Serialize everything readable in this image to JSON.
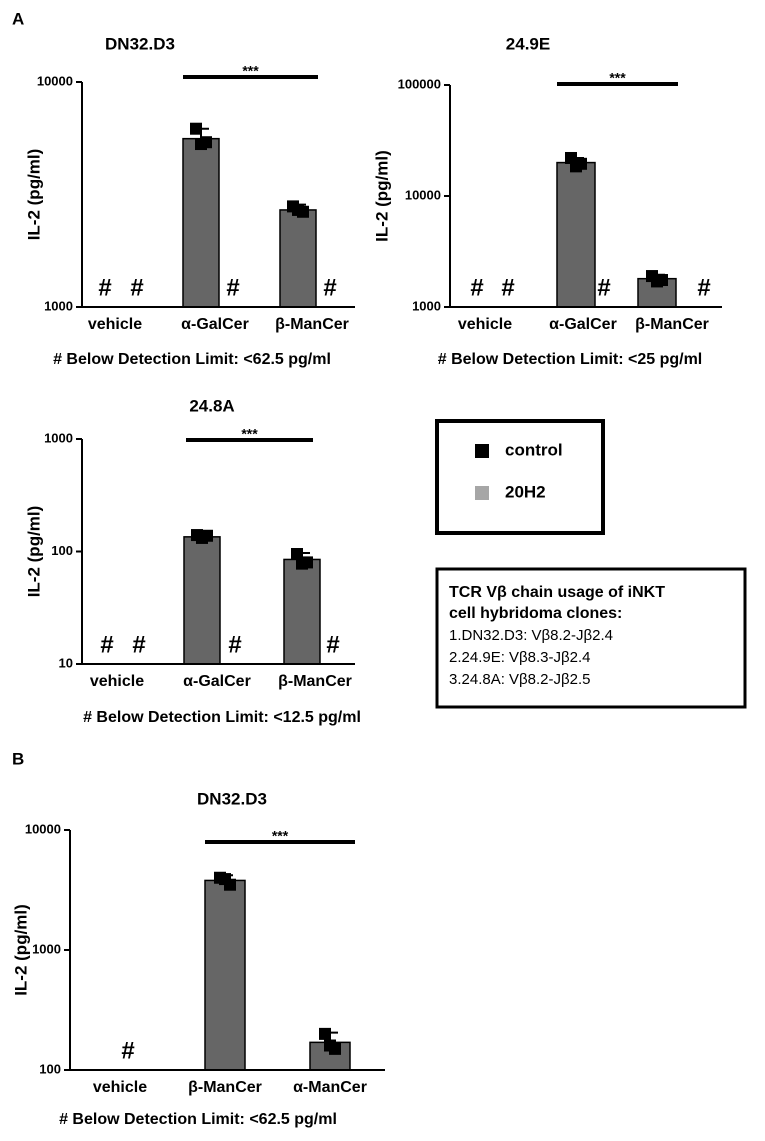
{
  "chart_data": [
    {
      "type": "bar",
      "panel": "A",
      "title": "DN32.D3",
      "ylabel": "IL-2 (pg/ml)",
      "yscale": "log",
      "ylim": [
        1000,
        10000
      ],
      "yticks": [
        1000,
        10000
      ],
      "categories": [
        "vehicle",
        "α-GalCer",
        "β-ManCer"
      ],
      "significance": "***",
      "note": "# Below Detection Limit: <62.5 pg/ml",
      "series": [
        {
          "name": "control",
          "color": "#000000",
          "values": [
            null,
            5600,
            2700
          ],
          "errors": [
            null,
            600,
            150
          ],
          "points": [
            null,
            [
              6200,
              5400,
              5300
            ],
            [
              2800,
              2650,
              2700
            ]
          ],
          "value_labels": [
            "#",
            null,
            null
          ]
        },
        {
          "name": "20H2",
          "color": "#a6a6a6",
          "values": [
            null,
            null,
            null
          ],
          "value_labels": [
            "#",
            "#",
            "#"
          ]
        }
      ]
    },
    {
      "type": "bar",
      "title": "24.9E",
      "ylabel": "IL-2 (pg/ml)",
      "yscale": "log",
      "ylim": [
        1000,
        100000
      ],
      "yticks": [
        1000,
        10000,
        100000
      ],
      "categories": [
        "vehicle",
        "α-GalCer",
        "β-ManCer"
      ],
      "significance": "***",
      "note": "# Below Detection Limit: <25 pg/ml",
      "series": [
        {
          "name": "control",
          "color": "#000000",
          "values": [
            null,
            20000,
            1800
          ],
          "errors": [
            null,
            2000,
            150
          ],
          "points": [
            null,
            [
              22000,
              19500,
              18500
            ],
            [
              1900,
              1750,
              1700
            ]
          ],
          "value_labels": [
            "#",
            null,
            null
          ]
        },
        {
          "name": "20H2",
          "color": "#a6a6a6",
          "values": [
            null,
            null,
            null
          ],
          "value_labels": [
            "#",
            "#",
            "#"
          ]
        }
      ]
    },
    {
      "type": "bar",
      "title": "24.8A",
      "ylabel": "IL-2 (pg/ml)",
      "yscale": "log",
      "ylim": [
        10,
        1000
      ],
      "yticks": [
        10,
        100,
        1000
      ],
      "categories": [
        "vehicle",
        "α-GalCer",
        "β-ManCer"
      ],
      "significance": "***",
      "note": "# Below Detection Limit: <12.5 pg/ml",
      "series": [
        {
          "name": "control",
          "color": "#000000",
          "values": [
            null,
            135,
            85
          ],
          "errors": [
            null,
            6,
            12
          ],
          "points": [
            null,
            [
              140,
              138,
              132
            ],
            [
              95,
              80,
              78
            ]
          ],
          "value_labels": [
            "#",
            null,
            null
          ]
        },
        {
          "name": "20H2",
          "color": "#a6a6a6",
          "values": [
            null,
            null,
            null
          ],
          "value_labels": [
            "#",
            "#",
            "#"
          ]
        }
      ]
    },
    {
      "type": "bar",
      "panel": "B",
      "title": "DN32.D3",
      "ylabel": "IL-2 (pg/ml)",
      "yscale": "log",
      "ylim": [
        100,
        10000
      ],
      "yticks": [
        100,
        1000,
        10000
      ],
      "categories": [
        "vehicle",
        "β-ManCer",
        "α-ManCer"
      ],
      "significance": "***",
      "note": "# Below Detection Limit: <62.5 pg/ml",
      "series": [
        {
          "name": "control",
          "color": "#000000",
          "values": [
            null,
            3800,
            170
          ],
          "errors": [
            null,
            400,
            35
          ],
          "points": [
            null,
            [
              4000,
              3500,
              3900
            ],
            [
              200,
              150,
              160
            ]
          ],
          "value_labels": [
            "#",
            null,
            null
          ]
        }
      ]
    }
  ],
  "info_box": {
    "title_lines": [
      "TCR Vβ chain usage of iNKT",
      "cell hybridoma clones:"
    ],
    "lines": [
      "1.DN32.D3: Vβ8.2-Jβ2.4",
      "2.24.9E: Vβ8.3-Jβ2.4",
      "3.24.8A: Vβ8.2-Jβ2.5"
    ]
  }
}
